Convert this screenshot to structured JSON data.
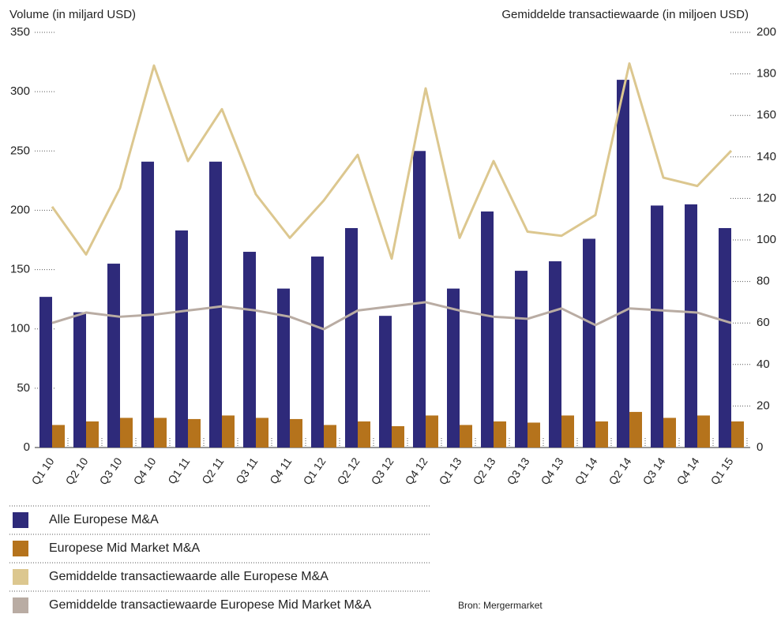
{
  "chart_data": {
    "type": "bar",
    "y_label": "Volume (in miljard USD)",
    "y2_label": "Gemiddelde transactiewaarde (in miljoen USD)",
    "source": "Bron: Mergermarket",
    "categories": [
      "Q1 10",
      "Q2 10",
      "Q3 10",
      "Q4 10",
      "Q1 11",
      "Q2 11",
      "Q3 11",
      "Q4 11",
      "Q1 12",
      "Q2 12",
      "Q3 12",
      "Q4 12",
      "Q1 13",
      "Q2 13",
      "Q3 13",
      "Q4 13",
      "Q1 14",
      "Q2 14",
      "Q3 14",
      "Q4 14",
      "Q1 15"
    ],
    "series": [
      {
        "name": "Alle Europese M&A",
        "color": "#2e2a7a",
        "type": "bar",
        "values": [
          127,
          114,
          155,
          241,
          183,
          241,
          165,
          134,
          161,
          185,
          111,
          250,
          134,
          199,
          149,
          157,
          176,
          310,
          204,
          205,
          185
        ]
      },
      {
        "name": "Europese Mid Market M&A",
        "color": "#b5731c",
        "type": "bar",
        "values": [
          19,
          22,
          25,
          25,
          24,
          27,
          25,
          24,
          19,
          22,
          18,
          27,
          19,
          22,
          21,
          27,
          22,
          30,
          25,
          27,
          22
        ]
      },
      {
        "name": "Gemiddelde transactiewaarde alle Europese M&A",
        "color": "#dcc78f",
        "type": "line",
        "axis": "y2",
        "values": [
          116,
          93,
          125,
          184,
          138,
          163,
          122,
          101,
          119,
          141,
          91,
          173,
          101,
          138,
          104,
          102,
          112,
          185,
          130,
          126,
          143
        ]
      },
      {
        "name": "Gemiddelde transactiewaarde Europese Mid Market M&A",
        "color": "#b9aca3",
        "type": "line",
        "axis": "y2",
        "values": [
          60,
          65,
          63,
          64,
          66,
          68,
          66,
          63,
          57,
          66,
          68,
          70,
          66,
          63,
          62,
          67,
          59,
          67,
          66,
          65,
          60
        ]
      }
    ],
    "ylim": [
      0,
      350
    ],
    "yticks": [
      0,
      50,
      100,
      150,
      200,
      250,
      300,
      350
    ],
    "y2lim": [
      0,
      200
    ],
    "y2ticks": [
      0,
      20,
      40,
      60,
      80,
      100,
      120,
      140,
      160,
      180,
      200
    ]
  }
}
